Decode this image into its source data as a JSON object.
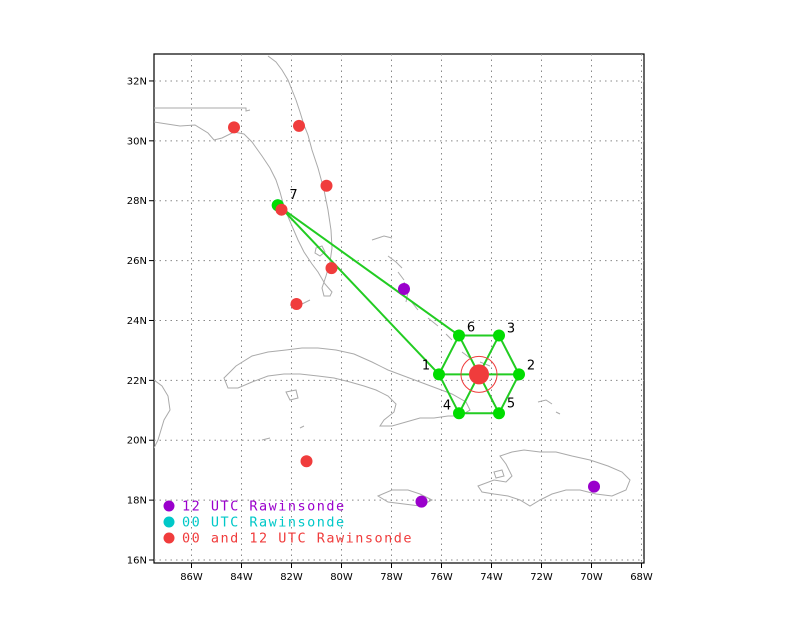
{
  "map": {
    "lon_range": [
      -87.5,
      -67.9
    ],
    "lat_range": [
      15.9,
      32.9
    ],
    "lon_ticks": [
      {
        "value": -86,
        "label": "86W"
      },
      {
        "value": -84,
        "label": "84W"
      },
      {
        "value": -82,
        "label": "82W"
      },
      {
        "value": -80,
        "label": "80W"
      },
      {
        "value": -78,
        "label": "78W"
      },
      {
        "value": -76,
        "label": "76W"
      },
      {
        "value": -74,
        "label": "74W"
      },
      {
        "value": -72,
        "label": "72W"
      },
      {
        "value": -70,
        "label": "70W"
      },
      {
        "value": -68,
        "label": "68W"
      }
    ],
    "lat_ticks": [
      {
        "value": 16,
        "label": "16N"
      },
      {
        "value": 18,
        "label": "18N"
      },
      {
        "value": 20,
        "label": "20N"
      },
      {
        "value": 22,
        "label": "22N"
      },
      {
        "value": 24,
        "label": "24N"
      },
      {
        "value": 26,
        "label": "26N"
      },
      {
        "value": 28,
        "label": "28N"
      },
      {
        "value": 30,
        "label": "30N"
      },
      {
        "value": 32,
        "label": "32N"
      }
    ],
    "grid": "dotted"
  },
  "colors": {
    "purple": "#9a00cc",
    "cyan": "#00c8c8",
    "red": "#f03c3c",
    "green": "#00dd00",
    "line_green": "#22cc22",
    "coast": "#aaaaaa"
  },
  "center": {
    "lon": -74.5,
    "lat": 22.2
  },
  "points": [
    {
      "label": "1",
      "lon": -76.1,
      "lat": 22.2
    },
    {
      "label": "2",
      "lon": -72.9,
      "lat": 22.2
    },
    {
      "label": "3",
      "lon": -73.7,
      "lat": 23.5
    },
    {
      "label": "4",
      "lon": -75.3,
      "lat": 20.9
    },
    {
      "label": "5",
      "lon": -73.7,
      "lat": 20.9
    },
    {
      "label": "6",
      "lon": -75.3,
      "lat": 23.5
    },
    {
      "label": "7",
      "lon": -82.4,
      "lat": 27.75
    }
  ],
  "stations": [
    {
      "type": "red",
      "lon": -84.3,
      "lat": 30.45
    },
    {
      "type": "red",
      "lon": -81.7,
      "lat": 30.5
    },
    {
      "type": "red",
      "lon": -80.6,
      "lat": 28.5
    },
    {
      "type": "cyan",
      "lon": -82.55,
      "lat": 27.85
    },
    {
      "type": "green",
      "lon": -82.55,
      "lat": 27.85
    },
    {
      "type": "red",
      "lon": -82.4,
      "lat": 27.7
    },
    {
      "type": "red",
      "lon": -80.4,
      "lat": 25.75
    },
    {
      "type": "red",
      "lon": -81.8,
      "lat": 24.55
    },
    {
      "type": "purple",
      "lon": -77.5,
      "lat": 25.05
    },
    {
      "type": "red",
      "lon": -81.4,
      "lat": 19.3
    },
    {
      "type": "purple",
      "lon": -76.8,
      "lat": 17.95
    },
    {
      "type": "purple",
      "lon": -69.9,
      "lat": 18.45
    }
  ],
  "legend": [
    {
      "type": "purple",
      "label": "12 UTC Rawinsonde"
    },
    {
      "type": "cyan",
      "label": "00 UTC Rawinsonde"
    },
    {
      "type": "red",
      "label": "00 and 12 UTC Rawinsonde"
    }
  ]
}
